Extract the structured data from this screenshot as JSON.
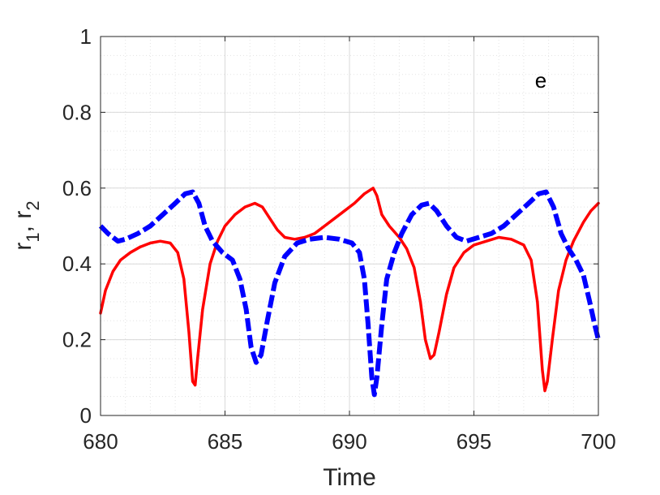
{
  "chart_data": {
    "type": "line",
    "xlabel": "Time",
    "ylabel": "r",
    "ylabel_sub1": "1",
    "ylabel_sep": ", r",
    "ylabel_sub2": "2",
    "annotation": "e",
    "xlim": [
      680,
      700
    ],
    "ylim": [
      0,
      1
    ],
    "grid": true,
    "minor_grid": true,
    "x_ticks": [
      680,
      685,
      690,
      695,
      700
    ],
    "x_tick_labels": [
      "680",
      "685",
      "690",
      "695",
      "700"
    ],
    "y_ticks": [
      0,
      0.2,
      0.4,
      0.6,
      0.8,
      1
    ],
    "y_tick_labels": [
      "0",
      "0.2",
      "0.4",
      "0.6",
      "0.8",
      "1"
    ],
    "series": [
      {
        "color": "#ff0000",
        "style": "solid",
        "points": [
          [
            680.0,
            0.27
          ],
          [
            680.2,
            0.33
          ],
          [
            680.5,
            0.38
          ],
          [
            680.8,
            0.41
          ],
          [
            681.2,
            0.43
          ],
          [
            681.6,
            0.445
          ],
          [
            682.0,
            0.455
          ],
          [
            682.4,
            0.46
          ],
          [
            682.8,
            0.455
          ],
          [
            683.1,
            0.43
          ],
          [
            683.35,
            0.36
          ],
          [
            683.55,
            0.22
          ],
          [
            683.7,
            0.09
          ],
          [
            683.8,
            0.08
          ],
          [
            683.9,
            0.15
          ],
          [
            684.1,
            0.28
          ],
          [
            684.4,
            0.4
          ],
          [
            684.7,
            0.46
          ],
          [
            685.0,
            0.5
          ],
          [
            685.4,
            0.53
          ],
          [
            685.8,
            0.55
          ],
          [
            686.2,
            0.56
          ],
          [
            686.5,
            0.55
          ],
          [
            686.8,
            0.52
          ],
          [
            687.1,
            0.49
          ],
          [
            687.4,
            0.47
          ],
          [
            687.8,
            0.465
          ],
          [
            688.2,
            0.47
          ],
          [
            688.6,
            0.48
          ],
          [
            689.0,
            0.5
          ],
          [
            689.4,
            0.52
          ],
          [
            689.8,
            0.54
          ],
          [
            690.2,
            0.56
          ],
          [
            690.6,
            0.585
          ],
          [
            690.95,
            0.6
          ],
          [
            691.1,
            0.58
          ],
          [
            691.3,
            0.53
          ],
          [
            691.6,
            0.5
          ],
          [
            692.0,
            0.47
          ],
          [
            692.3,
            0.44
          ],
          [
            692.6,
            0.39
          ],
          [
            692.85,
            0.3
          ],
          [
            693.05,
            0.2
          ],
          [
            693.25,
            0.15
          ],
          [
            693.4,
            0.16
          ],
          [
            693.6,
            0.22
          ],
          [
            693.9,
            0.32
          ],
          [
            694.2,
            0.39
          ],
          [
            694.6,
            0.43
          ],
          [
            695.0,
            0.45
          ],
          [
            695.5,
            0.46
          ],
          [
            696.0,
            0.47
          ],
          [
            696.5,
            0.465
          ],
          [
            697.0,
            0.45
          ],
          [
            697.3,
            0.41
          ],
          [
            697.55,
            0.3
          ],
          [
            697.75,
            0.12
          ],
          [
            697.85,
            0.065
          ],
          [
            697.95,
            0.09
          ],
          [
            698.15,
            0.2
          ],
          [
            698.4,
            0.33
          ],
          [
            698.7,
            0.41
          ],
          [
            699.0,
            0.46
          ],
          [
            699.4,
            0.51
          ],
          [
            699.7,
            0.54
          ],
          [
            700.0,
            0.56
          ]
        ]
      },
      {
        "color": "#0000ff",
        "style": "dashed",
        "points": [
          [
            680.0,
            0.5
          ],
          [
            680.3,
            0.48
          ],
          [
            680.7,
            0.46
          ],
          [
            681.0,
            0.465
          ],
          [
            681.5,
            0.48
          ],
          [
            682.0,
            0.5
          ],
          [
            682.5,
            0.53
          ],
          [
            683.0,
            0.56
          ],
          [
            683.4,
            0.585
          ],
          [
            683.7,
            0.59
          ],
          [
            683.95,
            0.56
          ],
          [
            684.2,
            0.5
          ],
          [
            684.5,
            0.46
          ],
          [
            684.9,
            0.43
          ],
          [
            685.3,
            0.41
          ],
          [
            685.6,
            0.36
          ],
          [
            685.85,
            0.28
          ],
          [
            686.05,
            0.18
          ],
          [
            686.25,
            0.14
          ],
          [
            686.45,
            0.16
          ],
          [
            686.7,
            0.25
          ],
          [
            687.0,
            0.35
          ],
          [
            687.4,
            0.42
          ],
          [
            687.9,
            0.455
          ],
          [
            688.4,
            0.465
          ],
          [
            689.0,
            0.47
          ],
          [
            689.6,
            0.465
          ],
          [
            690.1,
            0.455
          ],
          [
            690.4,
            0.43
          ],
          [
            690.6,
            0.36
          ],
          [
            690.75,
            0.24
          ],
          [
            690.9,
            0.1
          ],
          [
            691.0,
            0.055
          ],
          [
            691.1,
            0.1
          ],
          [
            691.3,
            0.24
          ],
          [
            691.5,
            0.36
          ],
          [
            691.8,
            0.43
          ],
          [
            692.1,
            0.48
          ],
          [
            692.5,
            0.53
          ],
          [
            692.9,
            0.555
          ],
          [
            693.2,
            0.56
          ],
          [
            693.5,
            0.54
          ],
          [
            693.9,
            0.5
          ],
          [
            694.3,
            0.47
          ],
          [
            694.7,
            0.46
          ],
          [
            695.2,
            0.47
          ],
          [
            695.7,
            0.48
          ],
          [
            696.2,
            0.5
          ],
          [
            696.7,
            0.53
          ],
          [
            697.2,
            0.56
          ],
          [
            697.6,
            0.585
          ],
          [
            697.9,
            0.59
          ],
          [
            698.2,
            0.55
          ],
          [
            698.5,
            0.48
          ],
          [
            698.8,
            0.44
          ],
          [
            699.1,
            0.41
          ],
          [
            699.4,
            0.37
          ],
          [
            699.65,
            0.3
          ],
          [
            699.85,
            0.24
          ],
          [
            700.0,
            0.2
          ]
        ]
      }
    ]
  }
}
